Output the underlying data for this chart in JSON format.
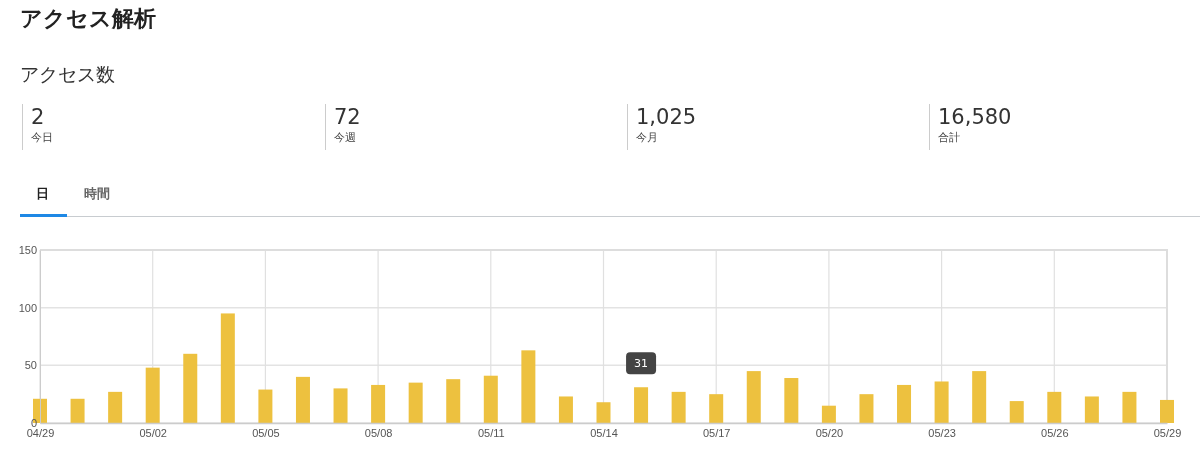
{
  "chart_data": [
    {
      "type": "other",
      "title": "アクセス解析",
      "subtitle": "アクセス数",
      "annotations": [
        "2",
        "今日",
        "72",
        "今週",
        "1,025",
        "今月",
        "16,580",
        "合計",
        "日",
        "時間"
      ]
    },
    {
      "type": "bar",
      "categories": [
        "04/29",
        null,
        null,
        "05/02",
        null,
        null,
        "05/05",
        null,
        null,
        "05/08",
        null,
        null,
        "05/11",
        null,
        null,
        "05/14",
        null,
        null,
        "05/17",
        null,
        null,
        "05/20",
        null,
        null,
        "05/23",
        null,
        null,
        "05/26",
        null,
        null,
        "05/29"
      ],
      "values": [
        21,
        21,
        27,
        48,
        60,
        95,
        29,
        40,
        30,
        33,
        35,
        38,
        41,
        63,
        23,
        18,
        31,
        27,
        25,
        45,
        39,
        15,
        25,
        33,
        36,
        45,
        19,
        27,
        23,
        27,
        20
      ],
      "color": "#edc13f",
      "ylim": [
        0,
        150
      ],
      "yticks": [
        0,
        50,
        100,
        150
      ],
      "grid": true,
      "annotations": [
        {
          "text": "31",
          "y": 31
        }
      ]
    }
  ]
}
